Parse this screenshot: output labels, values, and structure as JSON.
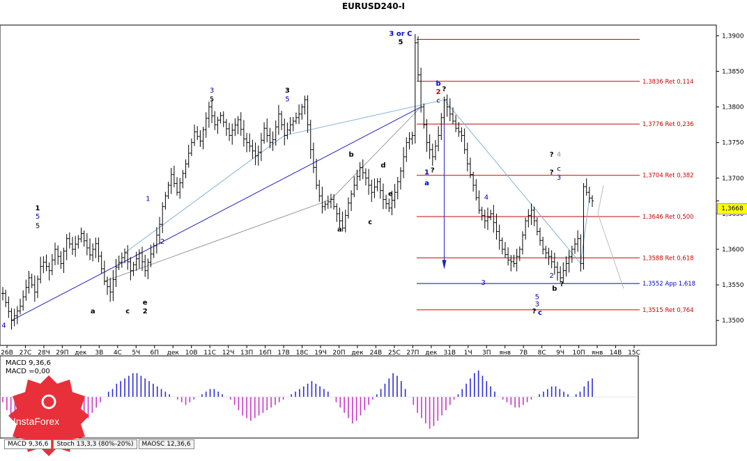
{
  "chart_data": {
    "type": "candlestick",
    "title": "EURUSD240-I",
    "price_axis": {
      "range": [
        1.3465,
        1.3915
      ],
      "ticks": [
        "1,3900",
        "1,3850",
        "1,3800",
        "1,3750",
        "1,3700",
        "1,3650",
        "1,3600",
        "1,3550",
        "1,3500"
      ],
      "current_price": "1,3668"
    },
    "time_axis": {
      "labels": [
        "26В",
        "27С",
        "28Ч",
        "29П",
        "дек",
        "3В",
        "4С",
        "5Ч",
        "6П",
        "дек",
        "10В",
        "11С",
        "12Ч",
        "13П",
        "16П",
        "17В",
        "18С",
        "19Ч",
        "20П",
        "дек",
        "24В",
        "25С",
        "27П",
        "дек",
        "31В",
        "1Ч",
        "3П",
        "янв",
        "7В",
        "8С",
        "9Ч",
        "10П",
        "янв",
        "14В",
        "15С"
      ]
    },
    "price_path": [
      [
        0,
        1.3538
      ],
      [
        6,
        1.35
      ],
      [
        12,
        1.352
      ],
      [
        18,
        1.356
      ],
      [
        22,
        1.354
      ],
      [
        27,
        1.3585
      ],
      [
        32,
        1.357
      ],
      [
        36,
        1.36
      ],
      [
        40,
        1.358
      ],
      [
        44,
        1.3615
      ],
      [
        48,
        1.36
      ],
      [
        54,
        1.3622
      ],
      [
        60,
        1.3592
      ],
      [
        64,
        1.3608
      ],
      [
        70,
        1.3555
      ],
      [
        74,
        1.354
      ],
      [
        78,
        1.3575
      ],
      [
        84,
        1.3595
      ],
      [
        88,
        1.357
      ],
      [
        94,
        1.3595
      ],
      [
        98,
        1.357
      ],
      [
        104,
        1.3605
      ],
      [
        108,
        1.3635
      ],
      [
        110,
        1.366
      ],
      [
        116,
        1.3705
      ],
      [
        120,
        1.368
      ],
      [
        126,
        1.372
      ],
      [
        132,
        1.3765
      ],
      [
        136,
        1.3752
      ],
      [
        142,
        1.38
      ],
      [
        146,
        1.3775
      ],
      [
        150,
        1.3788
      ],
      [
        156,
        1.376
      ],
      [
        162,
        1.3782
      ],
      [
        166,
        1.3755
      ],
      [
        170,
        1.3745
      ],
      [
        175,
        1.3728
      ],
      [
        180,
        1.377
      ],
      [
        185,
        1.3745
      ],
      [
        190,
        1.379
      ],
      [
        194,
        1.376
      ],
      [
        198,
        1.3775
      ],
      [
        204,
        1.379
      ],
      [
        208,
        1.381
      ],
      [
        212,
        1.374
      ],
      [
        216,
        1.369
      ],
      [
        220,
        1.366
      ],
      [
        226,
        1.367
      ],
      [
        230,
        1.365
      ],
      [
        234,
        1.363
      ],
      [
        238,
        1.3665
      ],
      [
        242,
        1.369
      ],
      [
        246,
        1.3715
      ],
      [
        250,
        1.37
      ],
      [
        254,
        1.368
      ],
      [
        258,
        1.3695
      ],
      [
        262,
        1.367
      ],
      [
        266,
        1.3658
      ],
      [
        270,
        1.368
      ],
      [
        274,
        1.371
      ],
      [
        278,
        1.375
      ],
      [
        282,
        1.376
      ],
      [
        284,
        1.389
      ],
      [
        288,
        1.38
      ],
      [
        292,
        1.375
      ],
      [
        296,
        1.373
      ],
      [
        300,
        1.376
      ],
      [
        304,
        1.381
      ],
      [
        308,
        1.379
      ],
      [
        312,
        1.377
      ],
      [
        316,
        1.376
      ],
      [
        320,
        1.372
      ],
      [
        324,
        1.369
      ],
      [
        328,
        1.3655
      ],
      [
        332,
        1.364
      ],
      [
        336,
        1.365
      ],
      [
        340,
        1.3625
      ],
      [
        344,
        1.36
      ],
      [
        348,
        1.3585
      ],
      [
        352,
        1.358
      ],
      [
        356,
        1.36
      ],
      [
        360,
        1.364
      ],
      [
        364,
        1.3655
      ],
      [
        368,
        1.3625
      ],
      [
        372,
        1.36
      ],
      [
        376,
        1.359
      ],
      [
        380,
        1.3575
      ],
      [
        384,
        1.356
      ],
      [
        388,
        1.358
      ],
      [
        392,
        1.36
      ],
      [
        396,
        1.3615
      ],
      [
        398,
        1.358
      ],
      [
        400,
        1.3688
      ],
      [
        404,
        1.3672
      ],
      [
        406,
        1.3668
      ]
    ],
    "levels": [
      {
        "price": 1.3895,
        "label": ""
      },
      {
        "price": 1.3836,
        "label": "1,3836 Ret 0,114"
      },
      {
        "price": 1.3776,
        "label": "1,3776 Ret 0,236"
      },
      {
        "price": 1.3704,
        "label": "1,3704 Ret 0,382"
      },
      {
        "price": 1.3646,
        "label": "1,3646 Ret 0,500"
      },
      {
        "price": 1.3588,
        "label": "1,3588 Ret 0,618"
      },
      {
        "price": 1.3552,
        "label": "1,3552 App 1,618",
        "color": "#0000cc"
      },
      {
        "price": 1.3515,
        "label": "1,3515 Ret 0,764"
      }
    ],
    "wave_labels": [
      {
        "t": 0.7,
        "p": 1.349,
        "text": "4",
        "color": "#0000cc"
      },
      {
        "t": 24,
        "p": 1.3655,
        "text": "1",
        "color": "#000000",
        "bold": true
      },
      {
        "t": 24,
        "p": 1.3643,
        "text": "5",
        "color": "#0000cc"
      },
      {
        "t": 24,
        "p": 1.363,
        "text": "5",
        "color": "#000000"
      },
      {
        "t": 196,
        "p": 1.382,
        "text": "3",
        "color": "#000000",
        "bold": true
      },
      {
        "t": 196,
        "p": 1.3808,
        "text": "5",
        "color": "#0000cc"
      },
      {
        "t": 274,
        "p": 1.39,
        "text": "3 or C",
        "color": "#0000cc",
        "bold": true
      },
      {
        "t": 274,
        "p": 1.3888,
        "text": "5",
        "color": "#000000",
        "bold": true
      },
      {
        "t": 144,
        "p": 1.382,
        "text": "3",
        "color": "#0000cc"
      },
      {
        "t": 144,
        "p": 1.3808,
        "text": "5",
        "color": "#000000"
      },
      {
        "t": 300,
        "p": 1.383,
        "text": "b",
        "color": "#0000cc",
        "bold": true
      },
      {
        "t": 300,
        "p": 1.3818,
        "text": "2",
        "color": "#c00000",
        "bold": true
      },
      {
        "t": 300,
        "p": 1.3806,
        "text": "c",
        "color": "#000000"
      },
      {
        "t": 304,
        "p": 1.3822,
        "text": "?",
        "color": "#000000",
        "bold": true
      },
      {
        "t": 378,
        "p": 1.373,
        "text": "?",
        "color": "#000000",
        "bold": true
      },
      {
        "t": 383,
        "p": 1.373,
        "text": "4",
        "color": "#999999"
      },
      {
        "t": 378,
        "p": 1.3705,
        "text": "?",
        "color": "#000000",
        "bold": true
      },
      {
        "t": 383,
        "p": 1.371,
        "text": "c",
        "color": "#000000"
      },
      {
        "t": 383,
        "p": 1.3698,
        "text": "3",
        "color": "#0000cc"
      },
      {
        "t": 380,
        "p": 1.3542,
        "text": "b",
        "color": "#000000",
        "bold": true
      },
      {
        "t": 385,
        "p": 1.3548,
        "text": "?",
        "color": "#000000",
        "bold": true
      },
      {
        "t": 378,
        "p": 1.356,
        "text": "2",
        "color": "#0000cc"
      },
      {
        "t": 366,
        "p": 1.351,
        "text": "?",
        "color": "#000000",
        "bold": true
      },
      {
        "t": 370,
        "p": 1.3508,
        "text": "c",
        "color": "#0000cc",
        "bold": true
      },
      {
        "t": 368,
        "p": 1.353,
        "text": "5",
        "color": "#0000cc"
      },
      {
        "t": 368,
        "p": 1.352,
        "text": "3",
        "color": "#0000cc"
      },
      {
        "t": 333,
        "p": 1.367,
        "text": "4",
        "color": "#0000cc"
      },
      {
        "t": 331,
        "p": 1.355,
        "text": "3",
        "color": "#0000cc"
      },
      {
        "t": 292,
        "p": 1.3705,
        "text": "1",
        "color": "#0000cc",
        "bold": true
      },
      {
        "t": 292,
        "p": 1.369,
        "text": "a",
        "color": "#0000cc",
        "bold": true
      },
      {
        "t": 296,
        "p": 1.3708,
        "text": "?",
        "color": "#000000",
        "bold": true
      },
      {
        "t": 262,
        "p": 1.3715,
        "text": "d",
        "color": "#000000",
        "bold": true
      },
      {
        "t": 267,
        "p": 1.3675,
        "text": "e",
        "color": "#000000",
        "bold": true
      },
      {
        "t": 240,
        "p": 1.373,
        "text": "b",
        "color": "#000000",
        "bold": true
      },
      {
        "t": 232,
        "p": 1.3625,
        "text": "a",
        "color": "#000000",
        "bold": true
      },
      {
        "t": 253,
        "p": 1.3635,
        "text": "c",
        "color": "#000000",
        "bold": true
      },
      {
        "t": 98,
        "p": 1.3522,
        "text": "e",
        "color": "#000000",
        "bold": true
      },
      {
        "t": 98,
        "p": 1.351,
        "text": "2",
        "color": "#000000",
        "bold": true
      },
      {
        "t": 110,
        "p": 1.3608,
        "text": "2",
        "color": "#0000cc"
      },
      {
        "t": 100,
        "p": 1.3668,
        "text": "1",
        "color": "#0000cc"
      },
      {
        "t": 62,
        "p": 1.351,
        "text": "a",
        "color": "#000000",
        "bold": true
      },
      {
        "t": 86,
        "p": 1.351,
        "text": "c",
        "color": "#000000",
        "bold": true
      }
    ],
    "indicator": {
      "name": "MACD 9,36,6",
      "value_label": "MACD =0,00",
      "values": [
        -2,
        -5,
        -7,
        -9,
        -10,
        -8,
        -6,
        -4,
        -2,
        0,
        2,
        3,
        4,
        3,
        2,
        0,
        -2,
        -4,
        -6,
        -8,
        -9,
        -8,
        -6,
        -4,
        -2,
        0,
        2,
        3,
        5,
        6,
        7,
        8,
        9,
        9,
        8,
        7,
        6,
        5,
        4,
        3,
        2,
        1,
        0,
        -1,
        -2,
        -3,
        -2,
        -1,
        0,
        1,
        2,
        3,
        3,
        2,
        1,
        0,
        -1,
        -3,
        -5,
        -7,
        -8,
        -9,
        -8,
        -7,
        -6,
        -5,
        -4,
        -3,
        -2,
        -1,
        0,
        1,
        2,
        3,
        4,
        5,
        6,
        5,
        4,
        3,
        2,
        0,
        -2,
        -4,
        -6,
        -8,
        -10,
        -9,
        -7,
        -5,
        -3,
        -1,
        1,
        3,
        5,
        7,
        9,
        8,
        6,
        3,
        0,
        -3,
        -6,
        -8,
        -10,
        -12,
        -11,
        -9,
        -7,
        -5,
        -3,
        -1,
        1,
        3,
        5,
        7,
        9,
        10,
        8,
        6,
        4,
        2,
        0,
        -1,
        -2,
        -3,
        -4,
        -4,
        -3,
        -2,
        -1,
        0,
        1,
        2,
        3,
        4,
        4,
        3,
        2,
        1,
        0,
        1,
        2,
        4,
        6,
        7
      ]
    },
    "bottom_tabs": [
      "MACD 9,36,6",
      "Stoch 13,3,3 (80%-20%)",
      "MAOSC 12,36,6"
    ],
    "logo_text": "InstaForex"
  }
}
